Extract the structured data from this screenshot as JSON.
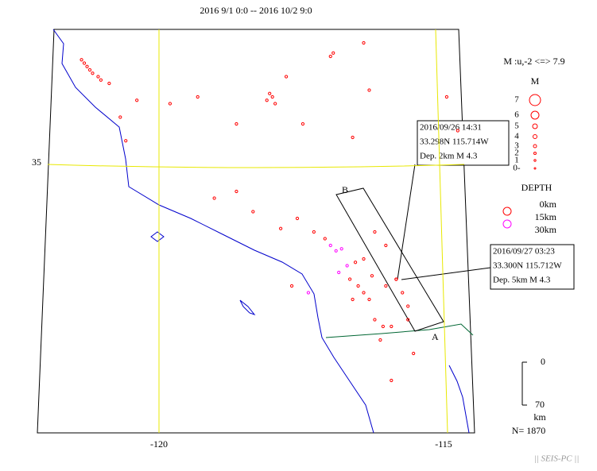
{
  "title": "2016 9/1 0:0 -- 2016 10/2 9:0",
  "map": {
    "lon_labels": [
      {
        "value": -120,
        "label": "-120"
      },
      {
        "value": -115,
        "label": "-115"
      }
    ],
    "lat_labels": [
      {
        "value": 35,
        "label": "35"
      }
    ],
    "events": [
      [
        -121.4,
        36.55,
        5
      ],
      [
        -121.3,
        36.45,
        6
      ],
      [
        -121.2,
        36.35,
        8
      ],
      [
        -121.1,
        36.3,
        7
      ],
      [
        -121.05,
        36.25,
        5
      ],
      [
        -121.25,
        36.4,
        4
      ],
      [
        -121.35,
        36.5,
        3
      ],
      [
        -120.9,
        36.2,
        6
      ],
      [
        -120.4,
        35.95,
        10
      ],
      [
        -120.7,
        35.7,
        8
      ],
      [
        -120.6,
        35.35,
        7
      ],
      [
        -118.0,
        36.05,
        5
      ],
      [
        -118.05,
        35.95,
        4
      ],
      [
        -117.95,
        36.0,
        6
      ],
      [
        -117.9,
        35.9,
        3
      ],
      [
        -117.7,
        36.3,
        2
      ],
      [
        -116.9,
        36.6,
        4
      ],
      [
        -116.85,
        36.65,
        5
      ],
      [
        -116.3,
        36.8,
        3
      ],
      [
        -116.2,
        36.1,
        6
      ],
      [
        -118.6,
        35.6,
        7
      ],
      [
        -119.3,
        36.0,
        9
      ],
      [
        -119.8,
        35.9,
        11
      ],
      [
        -117.4,
        35.6,
        8
      ],
      [
        -116.5,
        35.4,
        5
      ],
      [
        -119.0,
        34.5,
        12
      ],
      [
        -118.6,
        34.6,
        10
      ],
      [
        -118.3,
        34.3,
        9
      ],
      [
        -117.8,
        34.05,
        7
      ],
      [
        -117.5,
        34.2,
        6
      ],
      [
        -117.2,
        34.0,
        8
      ],
      [
        -117.0,
        33.9,
        9
      ],
      [
        -116.9,
        33.8,
        18
      ],
      [
        -116.8,
        33.72,
        20
      ],
      [
        -116.7,
        33.75,
        22
      ],
      [
        -116.75,
        33.4,
        17
      ],
      [
        -116.6,
        33.5,
        19
      ],
      [
        -116.55,
        33.3,
        10
      ],
      [
        -116.4,
        33.2,
        9
      ],
      [
        -116.3,
        33.1,
        11
      ],
      [
        -116.2,
        33.0,
        8
      ],
      [
        -116.5,
        33.0,
        7
      ],
      [
        -116.1,
        32.7,
        6
      ],
      [
        -115.95,
        32.6,
        5
      ],
      [
        -115.8,
        32.6,
        8
      ],
      [
        -115.714,
        33.298,
        2
      ],
      [
        -115.712,
        33.3,
        5
      ],
      [
        -115.6,
        33.1,
        4
      ],
      [
        -115.5,
        32.7,
        6
      ],
      [
        -115.9,
        33.8,
        7
      ],
      [
        -116.1,
        34.0,
        6
      ],
      [
        -116.3,
        33.6,
        9
      ],
      [
        -117.3,
        33.1,
        28
      ],
      [
        -117.6,
        33.2,
        12
      ],
      [
        -115.8,
        31.8,
        9
      ],
      [
        -115.4,
        32.2,
        5
      ],
      [
        -116.0,
        32.4,
        7
      ],
      [
        -114.8,
        36.0,
        4
      ],
      [
        -114.6,
        35.5,
        3
      ],
      [
        -116.45,
        33.55,
        8
      ],
      [
        -116.15,
        33.35,
        7
      ],
      [
        -115.9,
        33.2,
        6
      ],
      [
        -115.5,
        32.9,
        5
      ]
    ]
  },
  "legend": {
    "magnitude_title": "M :u,-2 <=> 7.9",
    "m_label": "M",
    "magnitudes": [
      7,
      6,
      5,
      4,
      3,
      2,
      1,
      "0-"
    ],
    "depth_title": "DEPTH",
    "depths": [
      "0km",
      "15km",
      "30km"
    ]
  },
  "profile": {
    "a": "A",
    "b": "B"
  },
  "callouts": [
    {
      "lines": [
        "2016/09/26 14:31",
        "33.298N  115.714W",
        "Dep. 2km    M 4.3"
      ]
    },
    {
      "lines": [
        "2016/09/27 03:23",
        "33.300N  115.712W",
        "Dep. 5km    M 4.3"
      ]
    }
  ],
  "depth_scale": {
    "top": "0",
    "bottom": "70",
    "unit": "km"
  },
  "count": "N= 1870",
  "footer": "|| SEIS-PC ||"
}
